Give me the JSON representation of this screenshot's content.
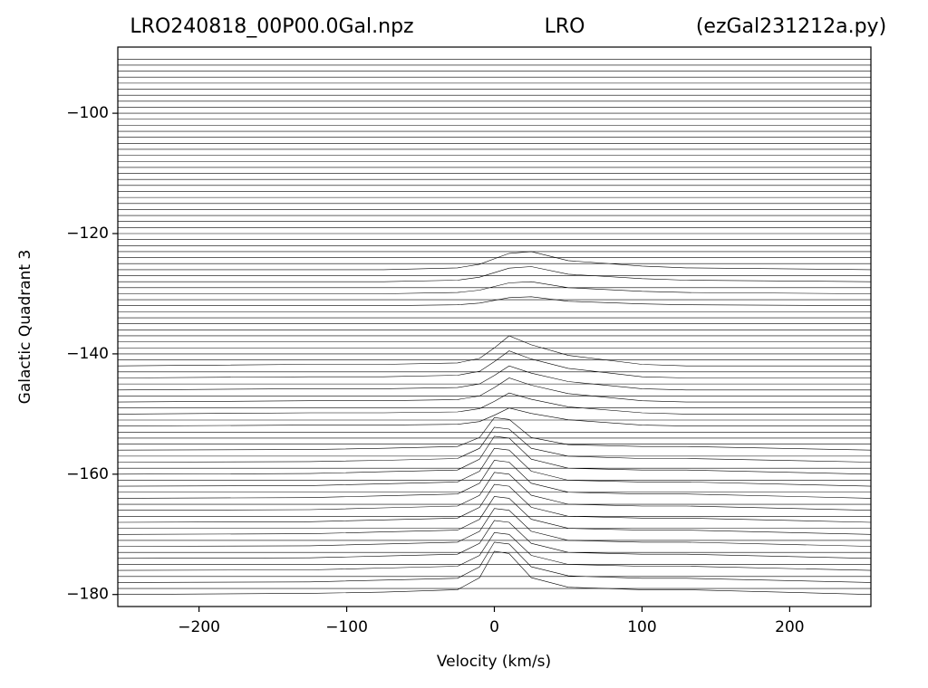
{
  "chart_data": {
    "type": "line",
    "title_left": "LRO240818_00P00.0Gal.npz",
    "title": "LRO",
    "title_right": "(ezGal231212a.py)",
    "x_label": "Velocity (km/s)",
    "y_label": "Galactic Quadrant 3",
    "color": "#000000",
    "xlim": [
      -255,
      255
    ],
    "ylim": [
      -182,
      -89
    ],
    "xticks": [
      {
        "value": -200,
        "label": "−200"
      },
      {
        "value": -100,
        "label": "−100"
      },
      0,
      100,
      200
    ],
    "yticks": [
      {
        "value": -100,
        "label": "−100"
      },
      {
        "value": -120,
        "label": "−120"
      },
      {
        "value": -140,
        "label": "−140"
      },
      {
        "value": -160,
        "label": "−160"
      },
      {
        "value": -180,
        "label": "−180"
      }
    ],
    "baselines": [
      -91,
      -92,
      -93,
      -94,
      -95,
      -96,
      -97,
      -98,
      -99,
      -100,
      -101,
      -102,
      -103,
      -104,
      -105,
      -106,
      -107,
      -108,
      -109,
      -110,
      -111,
      -112,
      -113,
      -114,
      -115,
      -116,
      -117,
      -118,
      -119,
      -120,
      -121,
      -122,
      -123,
      -124,
      -125,
      -127,
      -129,
      -131,
      -133,
      -134,
      -135,
      -136,
      -137,
      -138,
      -139,
      -140,
      -141,
      -143,
      -145,
      -147,
      -149,
      -151,
      -153,
      -154,
      -155,
      -157,
      -159,
      -161,
      -163,
      -165,
      -167,
      -169,
      -171,
      -173,
      -175,
      -177,
      -179
    ],
    "x": [
      -255,
      -125,
      -75,
      -25,
      -10,
      0,
      10,
      25,
      50,
      100,
      130,
      255
    ],
    "series": [
      {
        "values": [
          -126,
          -126,
          -126,
          -125.7,
          -125.1,
          -124.2,
          -123.3,
          -123,
          -124.5,
          -125.4,
          -125.7,
          -126
        ]
      },
      {
        "values": [
          -128,
          -128,
          -128,
          -127.75,
          -127.25,
          -126.5,
          -125.75,
          -125.5,
          -126.75,
          -127.5,
          -127.75,
          -128
        ]
      },
      {
        "values": [
          -130,
          -130,
          -130,
          -129.8,
          -129.4,
          -128.8,
          -128.2,
          -128,
          -129,
          -129.6,
          -129.8,
          -130
        ]
      },
      {
        "values": [
          -132,
          -132,
          -132,
          -131.85,
          -131.55,
          -131.1,
          -130.65,
          -130.5,
          -131.25,
          -131.7,
          -131.85,
          -132
        ]
      },
      {
        "values": [
          -142,
          -141.75,
          -141.75,
          -141.5,
          -140.75,
          -139,
          -137,
          -138.5,
          -140.25,
          -141.75,
          -142,
          -142
        ]
      },
      {
        "values": [
          -144,
          -143.8,
          -143.8,
          -143.55,
          -142.9,
          -141.3,
          -139.5,
          -140.85,
          -142.4,
          -143.8,
          -144,
          -144
        ]
      },
      {
        "values": [
          -146,
          -145.8,
          -145.8,
          -145.6,
          -145,
          -143.6,
          -142,
          -143.2,
          -144.6,
          -145.8,
          -146,
          -146
        ]
      },
      {
        "values": [
          -148,
          -147.8,
          -147.8,
          -147.6,
          -147,
          -145.6,
          -144,
          -145.2,
          -146.6,
          -147.8,
          -148,
          -148
        ]
      },
      {
        "values": [
          -150,
          -149.8,
          -149.8,
          -149.65,
          -149.1,
          -147.9,
          -146.5,
          -147.55,
          -148.8,
          -149.8,
          -150,
          -150
        ]
      },
      {
        "values": [
          -152,
          -151.85,
          -151.85,
          -151.7,
          -151.25,
          -150.2,
          -149,
          -149.9,
          -150.95,
          -151.85,
          -152,
          -152
        ]
      },
      {
        "values": [
          -156,
          -155.9,
          -155.7,
          -155.4,
          -153.9,
          -150.6,
          -150.9,
          -153.9,
          -155.1,
          -155.4,
          -155.4,
          -156
        ]
      },
      {
        "values": [
          -158,
          -157.9,
          -157.7,
          -157.4,
          -155.7,
          -152.2,
          -152.5,
          -155.7,
          -157,
          -157.4,
          -157.4,
          -158
        ]
      },
      {
        "values": [
          -160,
          -159.9,
          -159.6,
          -159.3,
          -157.5,
          -153.7,
          -154,
          -157.5,
          -159,
          -159.3,
          -159.3,
          -160
        ]
      },
      {
        "values": [
          -162,
          -161.9,
          -161.6,
          -161.3,
          -159.5,
          -155.7,
          -156,
          -159.5,
          -161,
          -161.3,
          -161.3,
          -162
        ]
      },
      {
        "values": [
          -164,
          -163.9,
          -163.6,
          -163.3,
          -161.5,
          -157.7,
          -158,
          -161.5,
          -163,
          -163.3,
          -163.3,
          -164
        ]
      },
      {
        "values": [
          -166,
          -165.9,
          -165.6,
          -165.3,
          -163.5,
          -159.7,
          -160,
          -163.5,
          -165,
          -165.3,
          -165.3,
          -166
        ]
      },
      {
        "values": [
          -168,
          -167.9,
          -167.6,
          -167.3,
          -165.5,
          -161.7,
          -162,
          -165.5,
          -167,
          -167.3,
          -167.3,
          -168
        ]
      },
      {
        "values": [
          -170,
          -169.9,
          -169.6,
          -169.3,
          -167.5,
          -163.7,
          -164,
          -167.5,
          -169,
          -169.3,
          -169.3,
          -170
        ]
      },
      {
        "values": [
          -172,
          -171.9,
          -171.6,
          -171.3,
          -169.5,
          -165.7,
          -166,
          -169.5,
          -171,
          -171.3,
          -171.3,
          -172
        ]
      },
      {
        "values": [
          -174,
          -173.9,
          -173.6,
          -173.3,
          -171.5,
          -167.7,
          -168,
          -171.5,
          -173,
          -173.3,
          -173.3,
          -174
        ]
      },
      {
        "values": [
          -176,
          -175.9,
          -175.6,
          -175.3,
          -173.5,
          -169.7,
          -170,
          -173.5,
          -175,
          -175.3,
          -175.3,
          -176
        ]
      },
      {
        "values": [
          -178,
          -177.9,
          -177.6,
          -177.3,
          -175.4,
          -171.3,
          -171.6,
          -175.4,
          -176.9,
          -177.3,
          -177.3,
          -178
        ]
      },
      {
        "values": [
          -180,
          -179.8,
          -179.6,
          -179.2,
          -177.2,
          -172.8,
          -173.2,
          -177.2,
          -178.8,
          -179.2,
          -179.2,
          -180
        ]
      }
    ]
  }
}
